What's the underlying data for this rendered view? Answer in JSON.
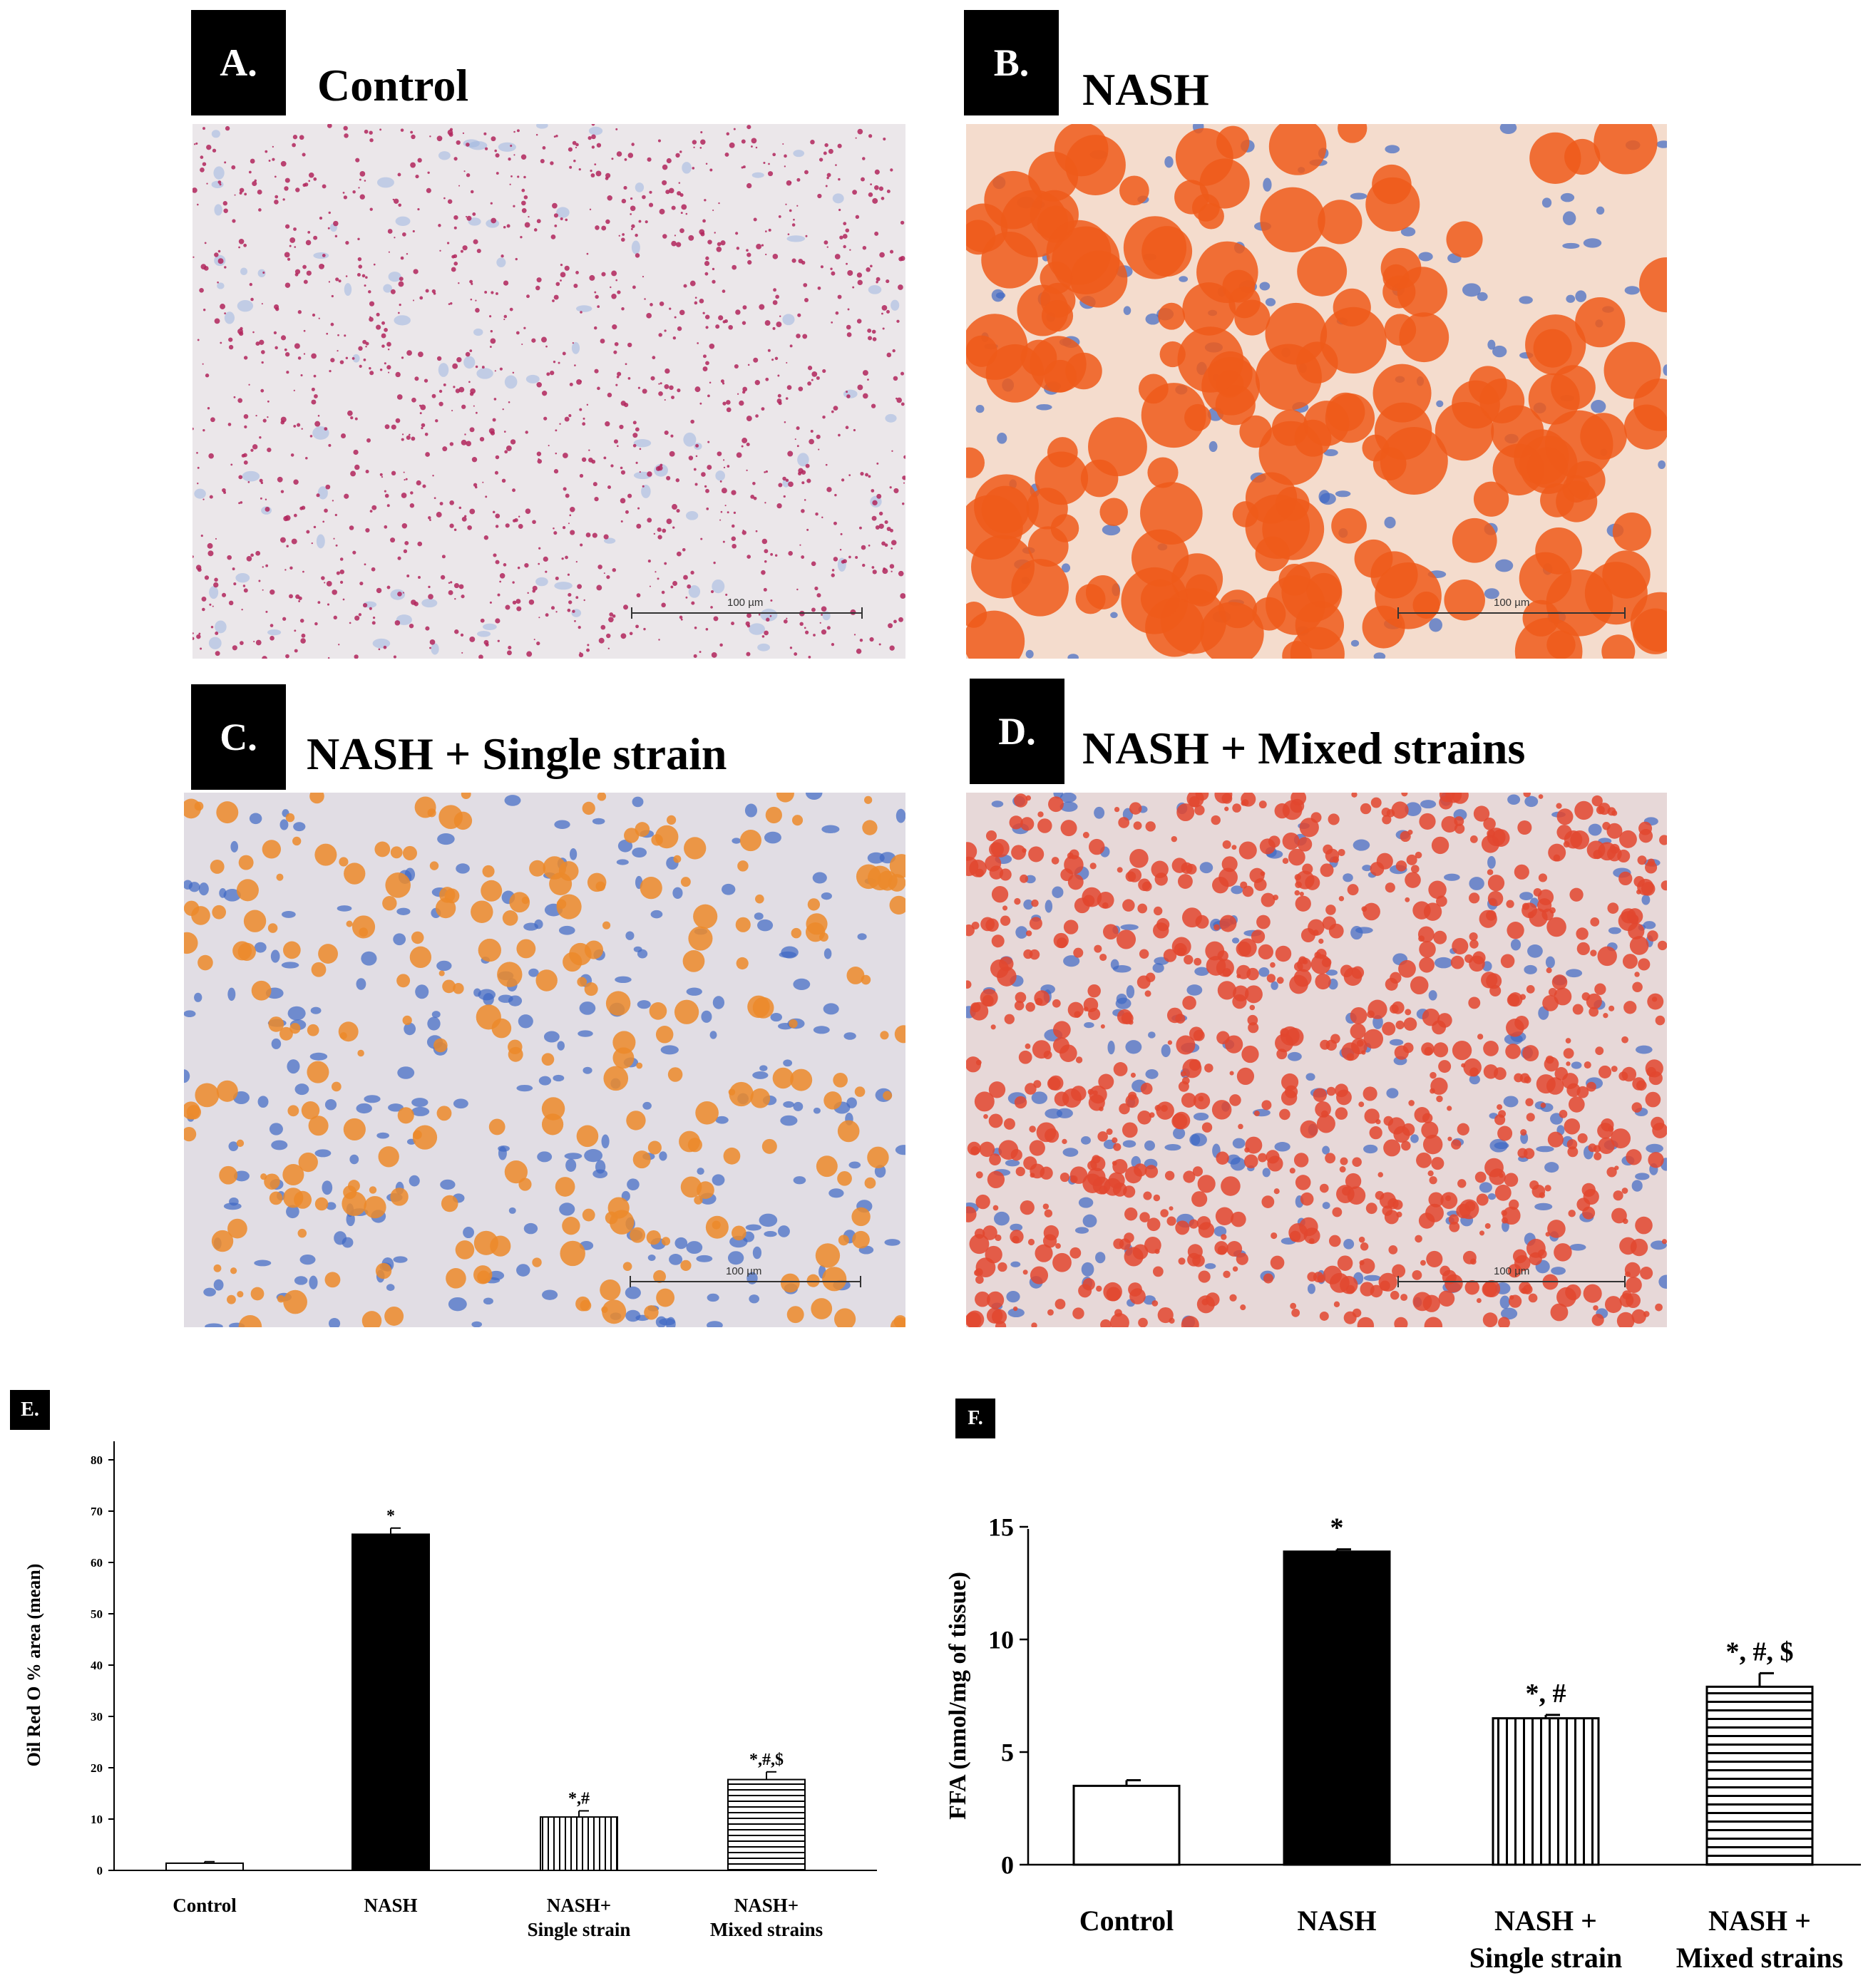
{
  "panels": [
    {
      "tag": "A.",
      "title": "Control",
      "scale": "100 µm",
      "bg": "#ebe7ea",
      "dot": "#b1255c"
    },
    {
      "tag": "B.",
      "title": "NASH",
      "scale": "100 µm",
      "bg": "#f4dccd",
      "dot": "#ee5a1a"
    },
    {
      "tag": "C.",
      "title": "NASH + Single strain",
      "scale": "100 µm",
      "bg": "#e1dde4",
      "dot": "#ec8a2a"
    },
    {
      "tag": "D.",
      "title": "NASH + Mixed strains",
      "scale": "100 µm",
      "bg": "#e7d8d8",
      "dot": "#e2462f"
    }
  ],
  "chart_data": [
    {
      "panel": "E.",
      "type": "bar",
      "ylabel": "Oil Red O % area (mean)",
      "xlabel": "",
      "ylim": [
        0,
        80
      ],
      "yticks": [
        0,
        10,
        20,
        30,
        40,
        50,
        60,
        70,
        80
      ],
      "categories": [
        "Control",
        "NASH",
        "NASH+ Single strain",
        "NASH+ Mixed strains"
      ],
      "category_lines": [
        [
          "Control"
        ],
        [
          "NASH"
        ],
        [
          "NASH+",
          "Single strain"
        ],
        [
          "NASH+",
          "Mixed strains"
        ]
      ],
      "values": [
        1.4,
        65.5,
        10.4,
        17.7
      ],
      "errors": [
        0.3,
        1.2,
        1.2,
        1.5
      ],
      "annotations": [
        "",
        "*",
        "*,#",
        "*,#,$"
      ],
      "fills": [
        "white",
        "black",
        "vertical-stripes",
        "horizontal-stripes"
      ],
      "grid": false
    },
    {
      "panel": "F.",
      "type": "bar",
      "ylabel": "FFA (nmol/mg of tissue)",
      "xlabel": "",
      "ylim": [
        0,
        15
      ],
      "yticks": [
        0,
        5,
        10,
        15
      ],
      "categories": [
        "Control",
        "NASH",
        "NASH + Single strain",
        "NASH + Mixed strains"
      ],
      "category_lines": [
        [
          "Control"
        ],
        [
          "NASH"
        ],
        [
          "NASH +",
          "Single strain"
        ],
        [
          "NASH +",
          "Mixed strains"
        ]
      ],
      "values": [
        3.5,
        13.9,
        6.5,
        7.9
      ],
      "errors": [
        0.25,
        0.1,
        0.15,
        0.6
      ],
      "annotations": [
        "",
        "*",
        "*, #",
        "*, #, $"
      ],
      "fills": [
        "white",
        "black",
        "vertical-stripes",
        "horizontal-stripes"
      ],
      "grid": false
    }
  ]
}
